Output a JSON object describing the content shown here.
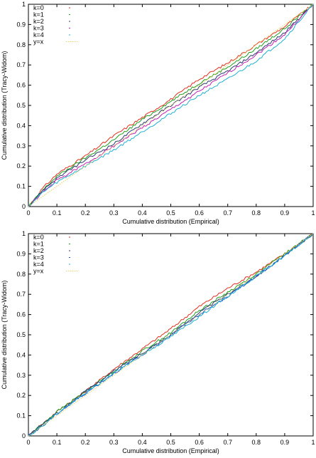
{
  "chart_data": [
    {
      "type": "line",
      "xlabel": "Cumulative distribution (Empirical)",
      "ylabel": "Cumulative distribution (Tracy-Widom)",
      "xlim": [
        0,
        1
      ],
      "ylim": [
        0,
        1
      ],
      "xticks": [
        "0",
        "0.1",
        "0.2",
        "0.3",
        "0.4",
        "0.5",
        "0.6",
        "0.7",
        "0.8",
        "0.9",
        "1"
      ],
      "yticks": [
        "0",
        "0.1",
        "0.2",
        "0.3",
        "0.4",
        "0.5",
        "0.6",
        "0.7",
        "0.8",
        "0.9",
        "1"
      ],
      "legend_position": "top-left",
      "grid": false,
      "series": [
        {
          "name": "k=0",
          "color": "#e03020",
          "x": [
            0,
            0.05,
            0.1,
            0.2,
            0.3,
            0.4,
            0.5,
            0.6,
            0.7,
            0.8,
            0.9,
            1
          ],
          "y": [
            0,
            0.09,
            0.16,
            0.25,
            0.35,
            0.44,
            0.53,
            0.63,
            0.71,
            0.8,
            0.89,
            1
          ]
        },
        {
          "name": "k=1",
          "color": "#20a020",
          "x": [
            0,
            0.05,
            0.1,
            0.2,
            0.3,
            0.4,
            0.5,
            0.6,
            0.7,
            0.8,
            0.9,
            1
          ],
          "y": [
            0,
            0.08,
            0.15,
            0.24,
            0.33,
            0.43,
            0.52,
            0.61,
            0.69,
            0.78,
            0.88,
            1
          ]
        },
        {
          "name": "k=2",
          "color": "#2a3a70",
          "x": [
            0,
            0.05,
            0.1,
            0.2,
            0.3,
            0.4,
            0.5,
            0.6,
            0.7,
            0.8,
            0.9,
            1
          ],
          "y": [
            0,
            0.08,
            0.14,
            0.23,
            0.31,
            0.41,
            0.5,
            0.59,
            0.67,
            0.76,
            0.86,
            1
          ]
        },
        {
          "name": "k=3",
          "color": "#c020b0",
          "x": [
            0,
            0.05,
            0.1,
            0.2,
            0.3,
            0.4,
            0.5,
            0.6,
            0.7,
            0.8,
            0.9,
            1
          ],
          "y": [
            0,
            0.07,
            0.13,
            0.21,
            0.3,
            0.39,
            0.48,
            0.57,
            0.66,
            0.75,
            0.85,
            1
          ]
        },
        {
          "name": "k=4",
          "color": "#20b0d0",
          "x": [
            0,
            0.05,
            0.1,
            0.2,
            0.3,
            0.4,
            0.5,
            0.6,
            0.7,
            0.8,
            0.9,
            1
          ],
          "y": [
            0,
            0.07,
            0.12,
            0.2,
            0.28,
            0.37,
            0.46,
            0.55,
            0.63,
            0.72,
            0.83,
            1
          ]
        },
        {
          "name": "y=x",
          "color": "#e8d060",
          "x": [
            0,
            1
          ],
          "y": [
            0,
            1
          ]
        }
      ]
    },
    {
      "type": "line",
      "xlabel": "Cumulative distribution (Empirical)",
      "ylabel": "Cumulative distribution (Tracy-Widom)",
      "xlim": [
        0,
        1
      ],
      "ylim": [
        0,
        1
      ],
      "xticks": [
        "0",
        "0.1",
        "0.2",
        "0.3",
        "0.4",
        "0.5",
        "0.6",
        "0.7",
        "0.8",
        "0.9",
        "1"
      ],
      "yticks": [
        "0",
        "0.1",
        "0.2",
        "0.3",
        "0.4",
        "0.5",
        "0.6",
        "0.7",
        "0.8",
        "0.9",
        "1"
      ],
      "legend_position": "top-left",
      "grid": false,
      "series": [
        {
          "name": "k=0",
          "color": "#e03020",
          "x": [
            0,
            0.05,
            0.1,
            0.2,
            0.3,
            0.4,
            0.5,
            0.6,
            0.7,
            0.8,
            0.9,
            1
          ],
          "y": [
            0,
            0.06,
            0.12,
            0.22,
            0.33,
            0.43,
            0.53,
            0.64,
            0.73,
            0.81,
            0.9,
            1
          ]
        },
        {
          "name": "k=1",
          "color": "#20a020",
          "x": [
            0,
            0.05,
            0.1,
            0.2,
            0.3,
            0.4,
            0.5,
            0.6,
            0.7,
            0.8,
            0.9,
            1
          ],
          "y": [
            0,
            0.06,
            0.12,
            0.22,
            0.32,
            0.42,
            0.51,
            0.62,
            0.71,
            0.8,
            0.9,
            1
          ]
        },
        {
          "name": "k=2",
          "color": "#2a3a70",
          "x": [
            0,
            0.05,
            0.1,
            0.2,
            0.3,
            0.4,
            0.5,
            0.6,
            0.7,
            0.8,
            0.9,
            1
          ],
          "y": [
            0,
            0.06,
            0.11,
            0.22,
            0.32,
            0.41,
            0.5,
            0.61,
            0.7,
            0.79,
            0.89,
            1
          ]
        },
        {
          "name": "k=3",
          "color": "#2050d0",
          "x": [
            0,
            0.05,
            0.1,
            0.2,
            0.3,
            0.4,
            0.5,
            0.6,
            0.7,
            0.8,
            0.9,
            1
          ],
          "y": [
            0,
            0.05,
            0.11,
            0.21,
            0.31,
            0.4,
            0.5,
            0.6,
            0.69,
            0.79,
            0.89,
            1
          ]
        },
        {
          "name": "k=4",
          "color": "#20b0d0",
          "x": [
            0,
            0.05,
            0.1,
            0.2,
            0.3,
            0.4,
            0.5,
            0.6,
            0.7,
            0.8,
            0.9,
            1
          ],
          "y": [
            0,
            0.05,
            0.11,
            0.21,
            0.31,
            0.4,
            0.49,
            0.59,
            0.69,
            0.79,
            0.89,
            1
          ]
        },
        {
          "name": "y=x",
          "color": "#e8d060",
          "x": [
            0,
            1
          ],
          "y": [
            0,
            1
          ]
        }
      ]
    }
  ]
}
